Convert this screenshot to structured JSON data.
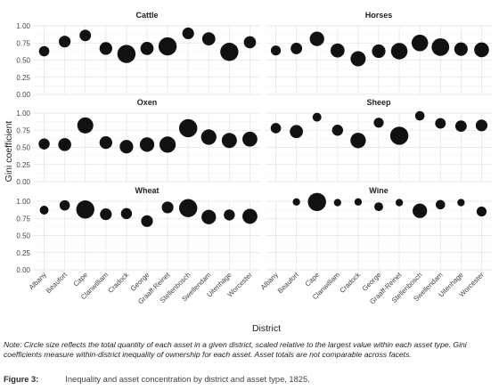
{
  "chart_data": {
    "type": "scatter",
    "ylabel": "Gini coefficient",
    "xlabel": "District",
    "ylim": [
      0,
      1
    ],
    "yticks": [
      "0.00",
      "0.25",
      "0.50",
      "0.75",
      "1.00"
    ],
    "grid": true,
    "districts": [
      "Albany",
      "Beaufort",
      "Cape",
      "Clanwilliam",
      "Cradock",
      "George",
      "Graaff-Reinet",
      "Stellenbosch",
      "Swellendam",
      "Uitenhage",
      "Worcester"
    ],
    "facets": [
      {
        "name": "Cattle",
        "values": [
          0.63,
          0.77,
          0.86,
          0.67,
          0.59,
          0.67,
          0.7,
          0.89,
          0.81,
          0.62,
          0.76
        ],
        "sizes": [
          0.2,
          0.3,
          0.28,
          0.38,
          1.0,
          0.42,
          1.0,
          0.3,
          0.42,
          1.0,
          0.33
        ]
      },
      {
        "name": "Horses",
        "values": [
          0.64,
          0.67,
          0.81,
          0.64,
          0.52,
          0.63,
          0.63,
          0.75,
          0.69,
          0.66,
          0.65
        ],
        "sizes": [
          0.18,
          0.28,
          0.55,
          0.5,
          0.62,
          0.45,
          0.78,
          0.78,
          0.92,
          0.45,
          0.58
        ]
      },
      {
        "name": "Oxen",
        "values": [
          0.55,
          0.54,
          0.82,
          0.57,
          0.51,
          0.54,
          0.54,
          0.78,
          0.65,
          0.6,
          0.62
        ],
        "sizes": [
          0.25,
          0.4,
          0.72,
          0.38,
          0.45,
          0.55,
          0.75,
          1.0,
          0.65,
          0.62,
          0.6
        ]
      },
      {
        "name": "Sheep",
        "values": [
          0.78,
          0.73,
          0.94,
          0.75,
          0.6,
          0.86,
          0.67,
          0.96,
          0.85,
          0.81,
          0.82
        ],
        "sizes": [
          0.2,
          0.42,
          0.12,
          0.25,
          0.65,
          0.18,
          1.0,
          0.15,
          0.22,
          0.28,
          0.3
        ]
      },
      {
        "name": "Wheat",
        "values": [
          0.87,
          0.94,
          0.88,
          0.81,
          0.82,
          0.71,
          0.91,
          0.9,
          0.77,
          0.8,
          0.78
        ],
        "sizes": [
          0.12,
          0.2,
          1.0,
          0.3,
          0.25,
          0.3,
          0.3,
          1.0,
          0.55,
          0.25,
          0.6
        ]
      },
      {
        "name": "Wine",
        "values": [
          null,
          0.99,
          0.99,
          0.98,
          0.99,
          0.92,
          0.98,
          0.86,
          0.95,
          0.98,
          0.85
        ],
        "sizes": [
          0,
          0.06,
          1.0,
          0.06,
          0.06,
          0.12,
          0.06,
          0.55,
          0.15,
          0.06,
          0.18
        ]
      }
    ]
  },
  "note": "Note: Circle size reflects the total quantity of each asset in a given district, scaled relative to the largest value within each asset type. Gini coefficients measure within-district inequality of ownership for each asset. Asset totals are not comparable across facets.",
  "caption": {
    "label": "Figure 3:",
    "text": "Inequality and asset concentration by district and asset type, 1825."
  }
}
